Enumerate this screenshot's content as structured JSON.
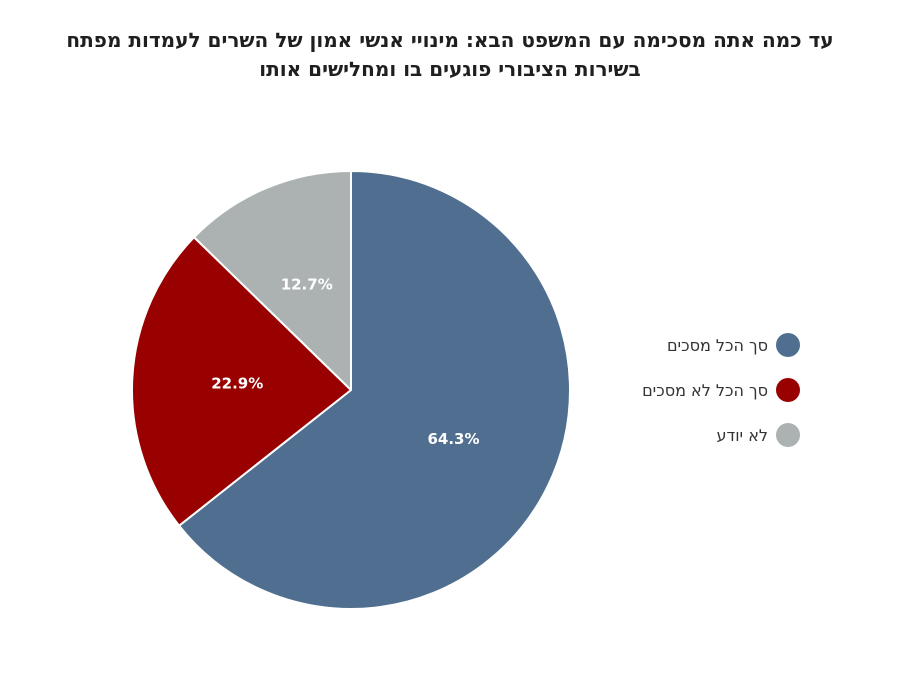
{
  "chart_data": {
    "type": "pie",
    "title_lines": [
      "עד כמה אתה מסכימה עם המשפט הבא: מינויי אנשי אמון של השרים לעמדות מפתח",
      "בשירות הציבורי פוגעים בו ומחלישים אותו"
    ],
    "slices": [
      {
        "label": "סך הכל מסכים",
        "value": 64.3,
        "value_label": "64.3%",
        "color": "#506f90"
      },
      {
        "label": "סך הכל לא מסכים",
        "value": 22.9,
        "value_label": "22.9%",
        "color": "#990000"
      },
      {
        "label": "לא יודע",
        "value": 12.7,
        "value_label": "12.7%",
        "color": "#acb1b2"
      }
    ],
    "start": "12 o'clock",
    "direction": "clockwise",
    "legend_position": "right"
  }
}
